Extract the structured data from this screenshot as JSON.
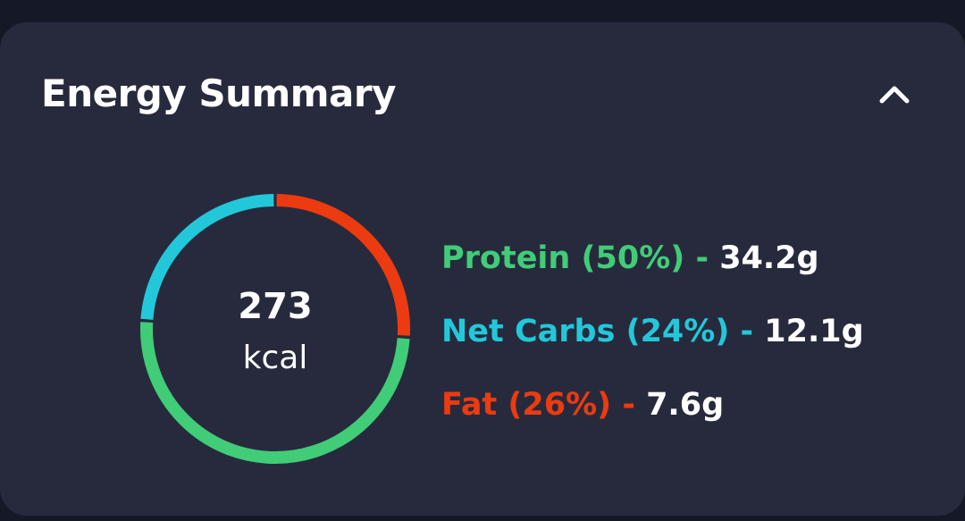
{
  "card": {
    "title": "Energy Summary",
    "collapse_icon": "chevron-up-icon"
  },
  "summary": {
    "calories": "273",
    "unit": "kcal"
  },
  "colors": {
    "protein": "#41cc78",
    "net_carbs": "#22c8da",
    "fat": "#ec3b10"
  },
  "macros": [
    {
      "label": "Protein (50%)",
      "separator": "-",
      "value": "34.2g",
      "percent": 50,
      "color": "#41cc78"
    },
    {
      "label": "Net Carbs (24%)",
      "separator": "-",
      "value": "12.1g",
      "percent": 24,
      "color": "#22c8da"
    },
    {
      "label": "Fat (26%)",
      "separator": "-",
      "value": "7.6g",
      "percent": 26,
      "color": "#ec3b10"
    }
  ]
}
